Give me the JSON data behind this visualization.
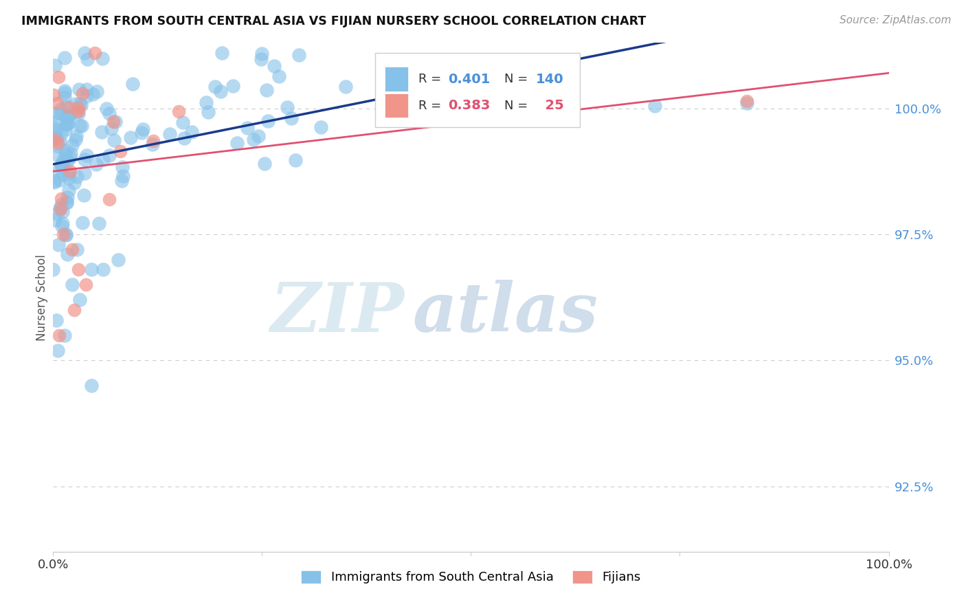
{
  "title": "IMMIGRANTS FROM SOUTH CENTRAL ASIA VS FIJIAN NURSERY SCHOOL CORRELATION CHART",
  "source": "Source: ZipAtlas.com",
  "ylabel": "Nursery School",
  "yticks": [
    92.5,
    95.0,
    97.5,
    100.0
  ],
  "ytick_labels": [
    "92.5%",
    "95.0%",
    "97.5%",
    "100.0%"
  ],
  "xlim": [
    0.0,
    100.0
  ],
  "ylim": [
    91.2,
    101.3
  ],
  "blue_R": 0.401,
  "blue_N": 140,
  "pink_R": 0.383,
  "pink_N": 25,
  "blue_color": "#85c1e9",
  "pink_color": "#f1948a",
  "blue_line_color": "#1a3a8c",
  "pink_line_color": "#e05070",
  "legend_label_blue": "Immigrants from South Central Asia",
  "legend_label_pink": "Fijians",
  "watermark_zip": "ZIP",
  "watermark_atlas": "atlas",
  "background_color": "#ffffff"
}
